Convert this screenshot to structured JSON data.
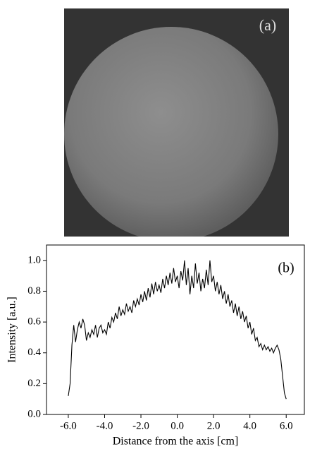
{
  "image_label": "(a)",
  "chart_data": {
    "type": "line",
    "annotation": "(b)",
    "xlabel": "Distance from the axis [cm]",
    "ylabel": "Intensity [a.u.]",
    "color": "#000000",
    "xlim": [
      -7.2,
      7.0
    ],
    "ylim": [
      0,
      1.1
    ],
    "xticks": [
      {
        "value": -6,
        "label": "-6.0"
      },
      {
        "value": -4,
        "label": "-4.0"
      },
      {
        "value": -2,
        "label": "-2.0"
      },
      {
        "value": 0,
        "label": "0.0"
      },
      {
        "value": 2,
        "label": "2.0"
      },
      {
        "value": 4,
        "label": "4.0"
      },
      {
        "value": 6,
        "label": "6.0"
      }
    ],
    "yticks": [
      {
        "value": 0,
        "label": "0.0"
      },
      {
        "value": 0.2,
        "label": "0.2"
      },
      {
        "value": 0.4,
        "label": "0.4"
      },
      {
        "value": 0.6,
        "label": "0.6"
      },
      {
        "value": 0.8,
        "label": "0.8"
      },
      {
        "value": 1,
        "label": "1.0"
      }
    ],
    "x": [
      -6.0,
      -5.9,
      -5.8,
      -5.7,
      -5.6,
      -5.5,
      -5.4,
      -5.3,
      -5.2,
      -5.1,
      -5.0,
      -4.9,
      -4.8,
      -4.7,
      -4.6,
      -4.5,
      -4.4,
      -4.3,
      -4.2,
      -4.1,
      -4.0,
      -3.9,
      -3.8,
      -3.7,
      -3.6,
      -3.5,
      -3.4,
      -3.3,
      -3.2,
      -3.1,
      -3.0,
      -2.9,
      -2.8,
      -2.7,
      -2.6,
      -2.5,
      -2.4,
      -2.3,
      -2.2,
      -2.1,
      -2.0,
      -1.9,
      -1.8,
      -1.7,
      -1.6,
      -1.5,
      -1.4,
      -1.3,
      -1.2,
      -1.1,
      -1.0,
      -0.9,
      -0.8,
      -0.7,
      -0.6,
      -0.5,
      -0.4,
      -0.3,
      -0.2,
      -0.1,
      0.0,
      0.1,
      0.2,
      0.3,
      0.4,
      0.5,
      0.6,
      0.7,
      0.8,
      0.9,
      1.0,
      1.1,
      1.2,
      1.3,
      1.4,
      1.5,
      1.6,
      1.7,
      1.8,
      1.9,
      2.0,
      2.1,
      2.2,
      2.3,
      2.4,
      2.5,
      2.6,
      2.7,
      2.8,
      2.9,
      3.0,
      3.1,
      3.2,
      3.3,
      3.4,
      3.5,
      3.6,
      3.7,
      3.8,
      3.9,
      4.0,
      4.1,
      4.2,
      4.3,
      4.4,
      4.5,
      4.6,
      4.7,
      4.8,
      4.9,
      5.0,
      5.1,
      5.2,
      5.3,
      5.4,
      5.5,
      5.6,
      5.7,
      5.8,
      5.9,
      6.0
    ],
    "values": [
      0.12,
      0.2,
      0.45,
      0.58,
      0.47,
      0.55,
      0.6,
      0.56,
      0.62,
      0.58,
      0.48,
      0.53,
      0.5,
      0.55,
      0.52,
      0.58,
      0.5,
      0.56,
      0.58,
      0.53,
      0.55,
      0.52,
      0.6,
      0.56,
      0.63,
      0.6,
      0.66,
      0.62,
      0.7,
      0.64,
      0.68,
      0.65,
      0.72,
      0.67,
      0.7,
      0.66,
      0.74,
      0.7,
      0.75,
      0.71,
      0.78,
      0.73,
      0.8,
      0.74,
      0.82,
      0.76,
      0.85,
      0.78,
      0.86,
      0.8,
      0.84,
      0.79,
      0.88,
      0.82,
      0.9,
      0.84,
      0.92,
      0.85,
      0.95,
      0.86,
      0.9,
      0.82,
      0.93,
      0.87,
      1.0,
      0.84,
      0.95,
      0.78,
      0.9,
      0.82,
      0.98,
      0.85,
      0.92,
      0.8,
      0.88,
      0.82,
      0.94,
      0.84,
      1.0,
      0.86,
      0.9,
      0.8,
      0.86,
      0.78,
      0.84,
      0.75,
      0.8,
      0.72,
      0.78,
      0.7,
      0.74,
      0.66,
      0.72,
      0.64,
      0.7,
      0.62,
      0.67,
      0.6,
      0.64,
      0.56,
      0.6,
      0.52,
      0.56,
      0.48,
      0.5,
      0.44,
      0.46,
      0.42,
      0.45,
      0.42,
      0.44,
      0.41,
      0.43,
      0.4,
      0.43,
      0.45,
      0.42,
      0.36,
      0.25,
      0.14,
      0.1
    ]
  }
}
